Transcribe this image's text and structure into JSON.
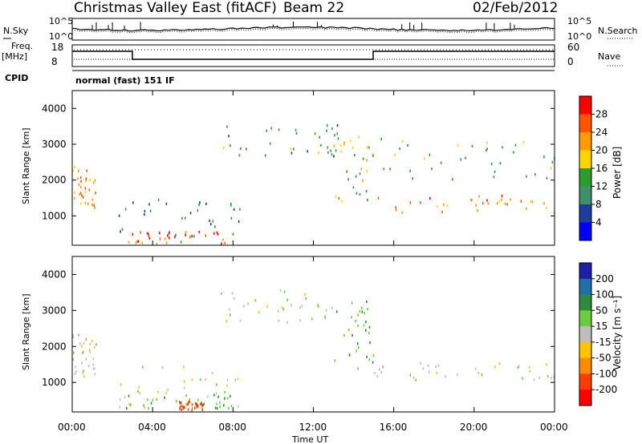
{
  "header": {
    "title": "Christmas Valley East (fitACF)",
    "beam": "Beam 22",
    "date": "02/Feb/2012"
  },
  "panels": {
    "nsky_label": "N.Sky",
    "nsearch_label": "N.Search",
    "noise_ticks": [
      "10^5",
      "10^0"
    ],
    "noise_ticks_right": [
      "10^5",
      "10^0"
    ],
    "freq_label": "Freq.",
    "freq_unit": "[MHz]",
    "freq_ticks": [
      "18",
      "8"
    ],
    "nave_label": "Nave",
    "nave_ticks": [
      "60",
      "0"
    ],
    "cpid_label": "CPID",
    "cpid_text": "normal (fast) 151 IF"
  },
  "xaxis": {
    "label": "Time UT",
    "ticks": [
      "00:00",
      "04:00",
      "08:00",
      "12:00",
      "16:00",
      "20:00",
      "00:00"
    ]
  },
  "power_colorbar": {
    "label": "Power [dB]",
    "ticks": [
      "28",
      "24",
      "20",
      "16",
      "12",
      "8",
      "4"
    ],
    "colors": [
      "#ff0000",
      "#ff5500",
      "#ff9a00",
      "#ffd400",
      "#2c9c2c",
      "#3f8f6a",
      "#1e3c9c",
      "#0000ff"
    ]
  },
  "velocity_colorbar": {
    "label": "Velocity [m s⁻¹]",
    "ticks": [
      "200",
      "100",
      "50",
      "15",
      "-15",
      "-50",
      "-100",
      "-200"
    ],
    "colors": [
      "#1e1ea8",
      "#1f6fa8",
      "#2c8c3c",
      "#6ccc3c",
      "#bebebe",
      "#ffc400",
      "#ff8a00",
      "#ff3c00",
      "#ff0000"
    ]
  },
  "chart_data": [
    {
      "type": "heatmap",
      "title": "",
      "xlabel": "Time UT",
      "ylabel": "Slant Range [km]",
      "xlim_hours": [
        0,
        24
      ],
      "ylim": [
        180,
        4500
      ],
      "yticks": [
        1000,
        2000,
        3000,
        4000
      ],
      "colorbar": "Power [dB]",
      "features": [
        {
          "name": "early echoes",
          "t": [
            0.0,
            1.2
          ],
          "r": [
            1200,
            2400
          ],
          "value": 20
        },
        {
          "name": "near range band",
          "t": [
            2.3,
            8.6
          ],
          "r": [
            300,
            1500
          ],
          "value": 8
        },
        {
          "name": "near range strong",
          "t": [
            2.6,
            7.6
          ],
          "r": [
            250,
            600
          ],
          "value": 24
        },
        {
          "name": "far band",
          "t": [
            7.0,
            13.5
          ],
          "r": [
            2700,
            3600
          ],
          "value": 10
        },
        {
          "name": "descending echoes",
          "t": [
            13.0,
            15.0
          ],
          "r": [
            1400,
            3300
          ],
          "value": 14
        },
        {
          "name": "late strong band",
          "t": [
            15.0,
            24.0
          ],
          "r": [
            1100,
            1600
          ],
          "value": 22
        },
        {
          "name": "late far band",
          "t": [
            15.0,
            24.0
          ],
          "r": [
            2000,
            3200
          ],
          "value": 12
        }
      ]
    },
    {
      "type": "heatmap",
      "title": "",
      "xlabel": "Time UT",
      "ylabel": "Slant Range [km]",
      "xlim_hours": [
        0,
        24
      ],
      "ylim": [
        180,
        4500
      ],
      "yticks": [
        1000,
        2000,
        3000,
        4000
      ],
      "colorbar": "Velocity [m s⁻¹]",
      "features": [
        {
          "name": "early echoes",
          "t": [
            0.0,
            1.2
          ],
          "r": [
            1200,
            2400
          ],
          "value": 0
        },
        {
          "name": "near range band",
          "t": [
            2.3,
            8.6
          ],
          "r": [
            300,
            1500
          ],
          "value": 0
        },
        {
          "name": "near range flow",
          "t": [
            2.6,
            8.0
          ],
          "r": [
            300,
            700
          ],
          "value": 30
        },
        {
          "name": "near range receding",
          "t": [
            5.3,
            6.5
          ],
          "r": [
            250,
            500
          ],
          "value": -100
        },
        {
          "name": "far band",
          "t": [
            7.0,
            13.5
          ],
          "r": [
            2700,
            3600
          ],
          "value": 0
        },
        {
          "name": "descending echoes",
          "t": [
            13.0,
            15.0
          ],
          "r": [
            1400,
            3300
          ],
          "value": 30
        },
        {
          "name": "late band",
          "t": [
            15.0,
            24.0
          ],
          "r": [
            1100,
            1600
          ],
          "value": 0
        }
      ]
    }
  ]
}
